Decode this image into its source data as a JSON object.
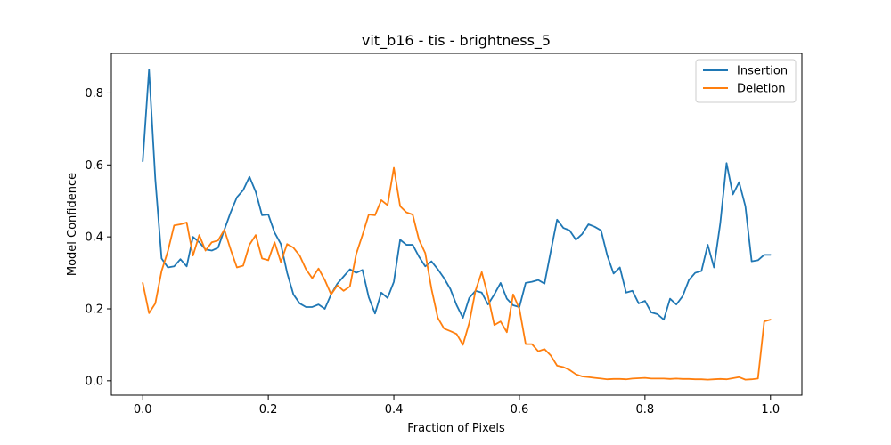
{
  "chart_data": {
    "type": "line",
    "title": "vit_b16 - tis - brightness_5",
    "xlabel": "Fraction of Pixels",
    "ylabel": "Model Confidence",
    "xlim": [
      -0.05,
      1.05
    ],
    "ylim": [
      -0.04,
      0.91
    ],
    "xticks": [
      0.0,
      0.2,
      0.4,
      0.6,
      0.8,
      1.0
    ],
    "xtick_labels": [
      "0.0",
      "0.2",
      "0.4",
      "0.6",
      "0.8",
      "1.0"
    ],
    "yticks": [
      0.0,
      0.2,
      0.4,
      0.6,
      0.8
    ],
    "ytick_labels": [
      "0.0",
      "0.2",
      "0.4",
      "0.6",
      "0.8"
    ],
    "grid": false,
    "legend_position": "top-right",
    "x": [
      0.0,
      0.01,
      0.02,
      0.03,
      0.04,
      0.05,
      0.06,
      0.07,
      0.08,
      0.09,
      0.1,
      0.11,
      0.12,
      0.13,
      0.14,
      0.15,
      0.16,
      0.17,
      0.18,
      0.19,
      0.2,
      0.21,
      0.22,
      0.23,
      0.24,
      0.25,
      0.26,
      0.27,
      0.28,
      0.29,
      0.3,
      0.31,
      0.32,
      0.33,
      0.34,
      0.35,
      0.36,
      0.37,
      0.38,
      0.39,
      0.4,
      0.41,
      0.42,
      0.43,
      0.44,
      0.45,
      0.46,
      0.47,
      0.48,
      0.49,
      0.5,
      0.51,
      0.52,
      0.53,
      0.54,
      0.55,
      0.56,
      0.57,
      0.58,
      0.59,
      0.6,
      0.61,
      0.62,
      0.63,
      0.64,
      0.65,
      0.66,
      0.67,
      0.68,
      0.69,
      0.7,
      0.71,
      0.72,
      0.73,
      0.74,
      0.75,
      0.76,
      0.77,
      0.78,
      0.79,
      0.8,
      0.81,
      0.82,
      0.83,
      0.84,
      0.85,
      0.86,
      0.87,
      0.88,
      0.89,
      0.9,
      0.91,
      0.92,
      0.93,
      0.94,
      0.95,
      0.96,
      0.97,
      0.98,
      0.99,
      1.0
    ],
    "series": [
      {
        "name": "Insertion",
        "color": "#1f77b4",
        "values": [
          0.61,
          0.865,
          0.56,
          0.34,
          0.315,
          0.318,
          0.338,
          0.318,
          0.4,
          0.385,
          0.365,
          0.362,
          0.37,
          0.42,
          0.468,
          0.51,
          0.53,
          0.567,
          0.525,
          0.46,
          0.462,
          0.412,
          0.38,
          0.3,
          0.24,
          0.215,
          0.205,
          0.205,
          0.212,
          0.2,
          0.24,
          0.27,
          0.29,
          0.31,
          0.3,
          0.308,
          0.232,
          0.187,
          0.245,
          0.23,
          0.275,
          0.392,
          0.378,
          0.378,
          0.345,
          0.318,
          0.332,
          0.31,
          0.285,
          0.255,
          0.21,
          0.175,
          0.23,
          0.25,
          0.245,
          0.212,
          0.24,
          0.272,
          0.228,
          0.21,
          0.205,
          0.272,
          0.275,
          0.28,
          0.27,
          0.36,
          0.448,
          0.425,
          0.418,
          0.392,
          0.408,
          0.435,
          0.428,
          0.418,
          0.348,
          0.298,
          0.315,
          0.245,
          0.25,
          0.215,
          0.222,
          0.19,
          0.185,
          0.17,
          0.228,
          0.212,
          0.235,
          0.28,
          0.3,
          0.305,
          0.378,
          0.315,
          0.438,
          0.605,
          0.518,
          0.552,
          0.485,
          0.332,
          0.335,
          0.35,
          0.35
        ]
      },
      {
        "name": "Deletion",
        "color": "#ff7f0e",
        "values": [
          0.272,
          0.188,
          0.215,
          0.305,
          0.36,
          0.432,
          0.435,
          0.44,
          0.348,
          0.405,
          0.362,
          0.385,
          0.39,
          0.42,
          0.365,
          0.315,
          0.32,
          0.378,
          0.405,
          0.34,
          0.335,
          0.385,
          0.33,
          0.38,
          0.37,
          0.348,
          0.31,
          0.285,
          0.312,
          0.28,
          0.24,
          0.265,
          0.25,
          0.262,
          0.352,
          0.405,
          0.462,
          0.46,
          0.502,
          0.488,
          0.592,
          0.485,
          0.468,
          0.462,
          0.392,
          0.355,
          0.255,
          0.175,
          0.145,
          0.138,
          0.13,
          0.1,
          0.16,
          0.25,
          0.302,
          0.235,
          0.155,
          0.165,
          0.135,
          0.24,
          0.2,
          0.102,
          0.102,
          0.082,
          0.088,
          0.07,
          0.042,
          0.038,
          0.03,
          0.018,
          0.012,
          0.01,
          0.008,
          0.006,
          0.004,
          0.005,
          0.005,
          0.004,
          0.006,
          0.007,
          0.008,
          0.006,
          0.006,
          0.006,
          0.005,
          0.006,
          0.005,
          0.005,
          0.004,
          0.004,
          0.003,
          0.004,
          0.005,
          0.004,
          0.007,
          0.01,
          0.003,
          0.004,
          0.006,
          0.165,
          0.17
        ]
      }
    ]
  }
}
